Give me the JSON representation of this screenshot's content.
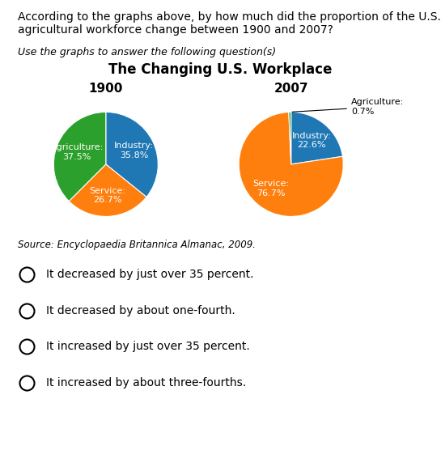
{
  "question": "According to the graphs above, by how much did the proportion of the U.S. agricultural workforce change between 1900 and 2007?",
  "subtitle": "Use the graphs to answer the following question(s)",
  "title": "The Changing U.S. Workplace",
  "source": "Source: Encyclopaedia Britannica Almanac, 2009.",
  "choices": [
    "It decreased by just over 35 percent.",
    "It decreased by about one-fourth.",
    "It increased by just over 35 percent.",
    "It increased by about three-fourths."
  ],
  "chart_data": [
    {
      "type": "pie",
      "title": "1900",
      "values": [
        35.8,
        26.7,
        37.5
      ],
      "value_labels": [
        "Industry:\n35.8%",
        "Service:\n26.7%",
        "Agriculture:\n37.5%"
      ],
      "data_labels": true
    },
    {
      "type": "pie",
      "title": "2007",
      "values": [
        22.6,
        76.7,
        0.7
      ],
      "value_labels": [
        "Industry:\n22.6%",
        "Service:\n76.7%",
        "Agriculture:\n0.7%"
      ],
      "data_labels": true
    }
  ]
}
